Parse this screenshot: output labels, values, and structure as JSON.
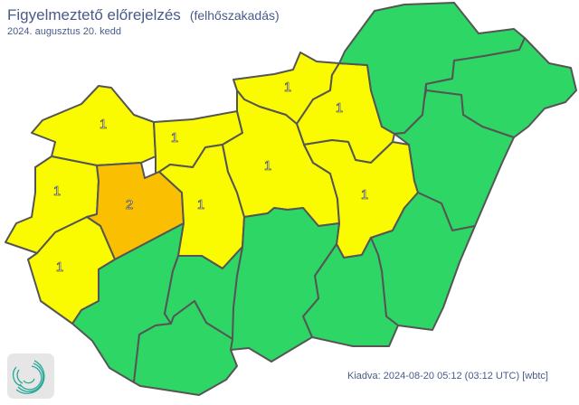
{
  "header": {
    "title": "Figyelmeztető előrejelzés",
    "subtitle": "(felhőszakadás)",
    "date": "2024. augusztus 20. kedd"
  },
  "footer": {
    "issued": "Kiadva: 2024-08-20 05:12 (03:12 UTC) [wbtc]"
  },
  "colors": {
    "0": "#2ed665",
    "1": "#fafa00",
    "2": "#f9bf00",
    "border": "#555555"
  },
  "counties": [
    {
      "id": "gyor-moson-sopron",
      "level": 1,
      "label": "1"
    },
    {
      "id": "komarom-esztergom",
      "level": 1,
      "label": "1"
    },
    {
      "id": "vas",
      "level": 1,
      "label": "1"
    },
    {
      "id": "veszprem",
      "level": 2,
      "label": "2"
    },
    {
      "id": "zala",
      "level": 1,
      "label": "1"
    },
    {
      "id": "somogy",
      "level": 0,
      "label": ""
    },
    {
      "id": "fejer",
      "level": 1,
      "label": "1"
    },
    {
      "id": "nograd",
      "level": 1,
      "label": "1"
    },
    {
      "id": "heves",
      "level": 1,
      "label": "1"
    },
    {
      "id": "pest",
      "level": 1,
      "label": "1"
    },
    {
      "id": "jasz-nagykun-szolnok",
      "level": 1,
      "label": "1"
    },
    {
      "id": "borsod-abauj-zemplen",
      "level": 0,
      "label": ""
    },
    {
      "id": "szabolcs-szatmar-bereg",
      "level": 0,
      "label": ""
    },
    {
      "id": "hajdu-bihar",
      "level": 0,
      "label": ""
    },
    {
      "id": "bekes",
      "level": 0,
      "label": ""
    },
    {
      "id": "csongrad-csanad",
      "level": 0,
      "label": ""
    },
    {
      "id": "bacs-kiskun",
      "level": 0,
      "label": ""
    },
    {
      "id": "tolna",
      "level": 0,
      "label": ""
    },
    {
      "id": "baranya",
      "level": 0,
      "label": ""
    }
  ]
}
